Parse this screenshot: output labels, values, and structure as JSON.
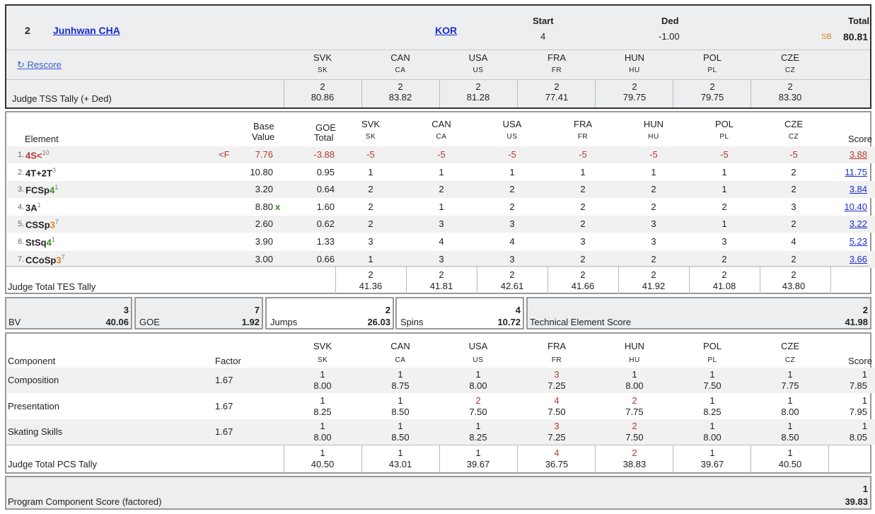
{
  "header": {
    "rank": "2",
    "skater": "Junhwan CHA",
    "nation": "KOR",
    "start_label": "Start",
    "start": "4",
    "ded_label": "Ded",
    "ded": "-1.00",
    "total_label": "Total",
    "sb": "SB",
    "total": "80.81",
    "rescore": "↻ Rescore",
    "tally_label": "Judge TSS Tally (+ Ded)"
  },
  "judges": [
    {
      "code": "SVK",
      "sub": "SK",
      "tss_rank": "2",
      "tss": "80.86",
      "tes_rank": "2",
      "tes": "41.36",
      "pcs_rank": "1",
      "pcs": "40.50"
    },
    {
      "code": "CAN",
      "sub": "CA",
      "tss_rank": "2",
      "tss": "83.82",
      "tes_rank": "2",
      "tes": "41.81",
      "pcs_rank": "1",
      "pcs": "43.01"
    },
    {
      "code": "USA",
      "sub": "US",
      "tss_rank": "2",
      "tss": "81.28",
      "tes_rank": "2",
      "tes": "42.61",
      "pcs_rank": "1",
      "pcs": "39.67"
    },
    {
      "code": "FRA",
      "sub": "FR",
      "tss_rank": "2",
      "tss": "77.41",
      "tes_rank": "2",
      "tes": "41.66",
      "pcs_rank": "4",
      "pcs": "36.75"
    },
    {
      "code": "HUN",
      "sub": "HU",
      "tss_rank": "2",
      "tss": "79.75",
      "tes_rank": "2",
      "tes": "41.92",
      "pcs_rank": "2",
      "pcs": "38.83"
    },
    {
      "code": "POL",
      "sub": "PL",
      "tss_rank": "2",
      "tss": "79.75",
      "tes_rank": "2",
      "tes": "41.08",
      "pcs_rank": "1",
      "pcs": "39.67"
    },
    {
      "code": "CZE",
      "sub": "CZ",
      "tss_rank": "2",
      "tss": "83.30",
      "tes_rank": "2",
      "tes": "43.80",
      "pcs_rank": "1",
      "pcs": "40.50"
    }
  ],
  "elements_header": {
    "element": "Element",
    "base": "Base",
    "value": "Value",
    "goe": "GOE",
    "goe_total": "Total",
    "score": "Score",
    "tally_label": "Judge Total TES Tally"
  },
  "elements": [
    {
      "num": "1.",
      "name": "4S<",
      "sup": "10",
      "flag": "<F",
      "base": "7.76",
      "x": "",
      "goe": "-3.88",
      "marks": [
        "-5",
        "-5",
        "-5",
        "-5",
        "-5",
        "-5",
        "-5"
      ],
      "score": "3.88"
    },
    {
      "num": "2.",
      "name": "4T+2T",
      "sup": "3",
      "flag": "",
      "base": "10.80",
      "x": "",
      "goe": "0.95",
      "marks": [
        "1",
        "1",
        "1",
        "1",
        "1",
        "1",
        "2"
      ],
      "score": "11.75"
    },
    {
      "num": "3.",
      "name": "FCSp",
      "lvl": "4",
      "sup": "1",
      "flag": "",
      "base": "3.20",
      "x": "",
      "goe": "0.64",
      "marks": [
        "2",
        "2",
        "2",
        "2",
        "2",
        "1",
        "2"
      ],
      "score": "3.84"
    },
    {
      "num": "4.",
      "name": "3A",
      "sup": "1",
      "flag": "",
      "base": "8.80",
      "x": "x",
      "goe": "1.60",
      "marks": [
        "2",
        "1",
        "2",
        "2",
        "2",
        "2",
        "3"
      ],
      "score": "10.40"
    },
    {
      "num": "5.",
      "name": "CSSp",
      "lvl": "3",
      "sup": "7",
      "flag": "",
      "base": "2.60",
      "x": "",
      "goe": "0.62",
      "marks": [
        "2",
        "3",
        "3",
        "2",
        "3",
        "1",
        "2"
      ],
      "score": "3.22"
    },
    {
      "num": "6.",
      "name": "StSq",
      "lvl": "4",
      "sup": "1",
      "flag": "",
      "base": "3.90",
      "x": "",
      "goe": "1.33",
      "marks": [
        "3",
        "4",
        "4",
        "3",
        "3",
        "3",
        "4"
      ],
      "score": "5.23"
    },
    {
      "num": "7.",
      "name": "CCoSp",
      "lvl": "3",
      "sup": "7",
      "flag": "",
      "base": "3.00",
      "x": "",
      "goe": "0.66",
      "marks": [
        "1",
        "3",
        "3",
        "2",
        "2",
        "2",
        "2"
      ],
      "score": "3.66"
    }
  ],
  "summary": {
    "bv_label": "BV",
    "bv_rank": "3",
    "bv": "40.06",
    "goe_label": "GOE",
    "goe_rank": "7",
    "goe": "1.92",
    "jumps_label": "Jumps",
    "jumps_rank": "2",
    "jumps": "26.03",
    "spins_label": "Spins",
    "spins_rank": "4",
    "spins": "10.72",
    "tes_label": "Technical Element Score",
    "tes_rank": "2",
    "tes": "41.98"
  },
  "components_header": {
    "component": "Component",
    "factor": "Factor",
    "score": "Score",
    "tally_label": "Judge Total PCS Tally"
  },
  "components": [
    {
      "name": "Composition",
      "factor": "1.67",
      "marks": [
        [
          "1",
          "8.00"
        ],
        [
          "1",
          "8.75"
        ],
        [
          "1",
          "8.00"
        ],
        [
          "3",
          "7.25"
        ],
        [
          "1",
          "8.00"
        ],
        [
          "1",
          "7.50"
        ],
        [
          "1",
          "7.75"
        ]
      ],
      "score_rank": "1",
      "score": "7.85"
    },
    {
      "name": "Presentation",
      "factor": "1.67",
      "marks": [
        [
          "1",
          "8.25"
        ],
        [
          "1",
          "8.50"
        ],
        [
          "2",
          "7.50"
        ],
        [
          "4",
          "7.50"
        ],
        [
          "2",
          "7.75"
        ],
        [
          "1",
          "8.25"
        ],
        [
          "1",
          "8.00"
        ]
      ],
      "score_rank": "1",
      "score": "7.95"
    },
    {
      "name": "Skating Skills",
      "factor": "1.67",
      "marks": [
        [
          "1",
          "8.00"
        ],
        [
          "1",
          "8.50"
        ],
        [
          "1",
          "8.25"
        ],
        [
          "3",
          "7.25"
        ],
        [
          "2",
          "7.50"
        ],
        [
          "1",
          "8.00"
        ],
        [
          "1",
          "8.50"
        ]
      ],
      "score_rank": "1",
      "score": "8.05"
    }
  ],
  "pcs_total": {
    "label": "Program Component Score (factored)",
    "rank": "1",
    "value": "39.83"
  }
}
